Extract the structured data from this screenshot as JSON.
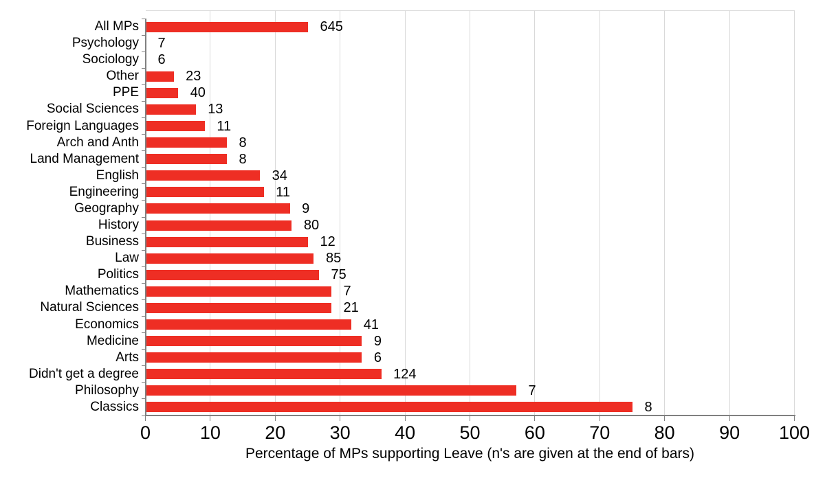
{
  "chart_data": {
    "type": "bar",
    "orientation": "horizontal",
    "title": "",
    "xlabel": "Percentage of MPs supporting Leave (n's are given at the end of bars)",
    "ylabel": "",
    "xlim": [
      0,
      100
    ],
    "xticks": [
      0,
      10,
      20,
      30,
      40,
      50,
      60,
      70,
      80,
      90,
      100
    ],
    "grid": true,
    "legend": false,
    "categories": [
      "All MPs",
      "Psychology",
      "Sociology",
      "Other",
      "PPE",
      "Social Sciences",
      "Foreign Languages",
      "Arch and Anth",
      "Land Management",
      "English",
      "Engineering",
      "Geography",
      "History",
      "Business",
      "Law",
      "Politics",
      "Mathematics",
      "Natural Sciences",
      "Economics",
      "Medicine",
      "Arts",
      "Didn't get a degree",
      "Philosophy",
      "Classics"
    ],
    "values": [
      25.0,
      0,
      0,
      4.3,
      5.0,
      7.7,
      9.1,
      12.5,
      12.5,
      17.6,
      18.2,
      22.2,
      22.5,
      25.0,
      25.9,
      26.7,
      28.6,
      28.6,
      31.7,
      33.3,
      33.3,
      36.3,
      57.1,
      75.0
    ],
    "n_labels": [
      "645",
      "7",
      "6",
      "23",
      "40",
      "13",
      "11",
      "8",
      "8",
      "34",
      "11",
      "9",
      "80",
      "12",
      "85",
      "75",
      "7",
      "21",
      "41",
      "9",
      "6",
      "124",
      "7",
      "8"
    ],
    "colors": {
      "bar": "#ee2e24",
      "gridline": "#d9d9d9",
      "axis": "#808080",
      "text": "#000000",
      "background": "#ffffff"
    }
  }
}
